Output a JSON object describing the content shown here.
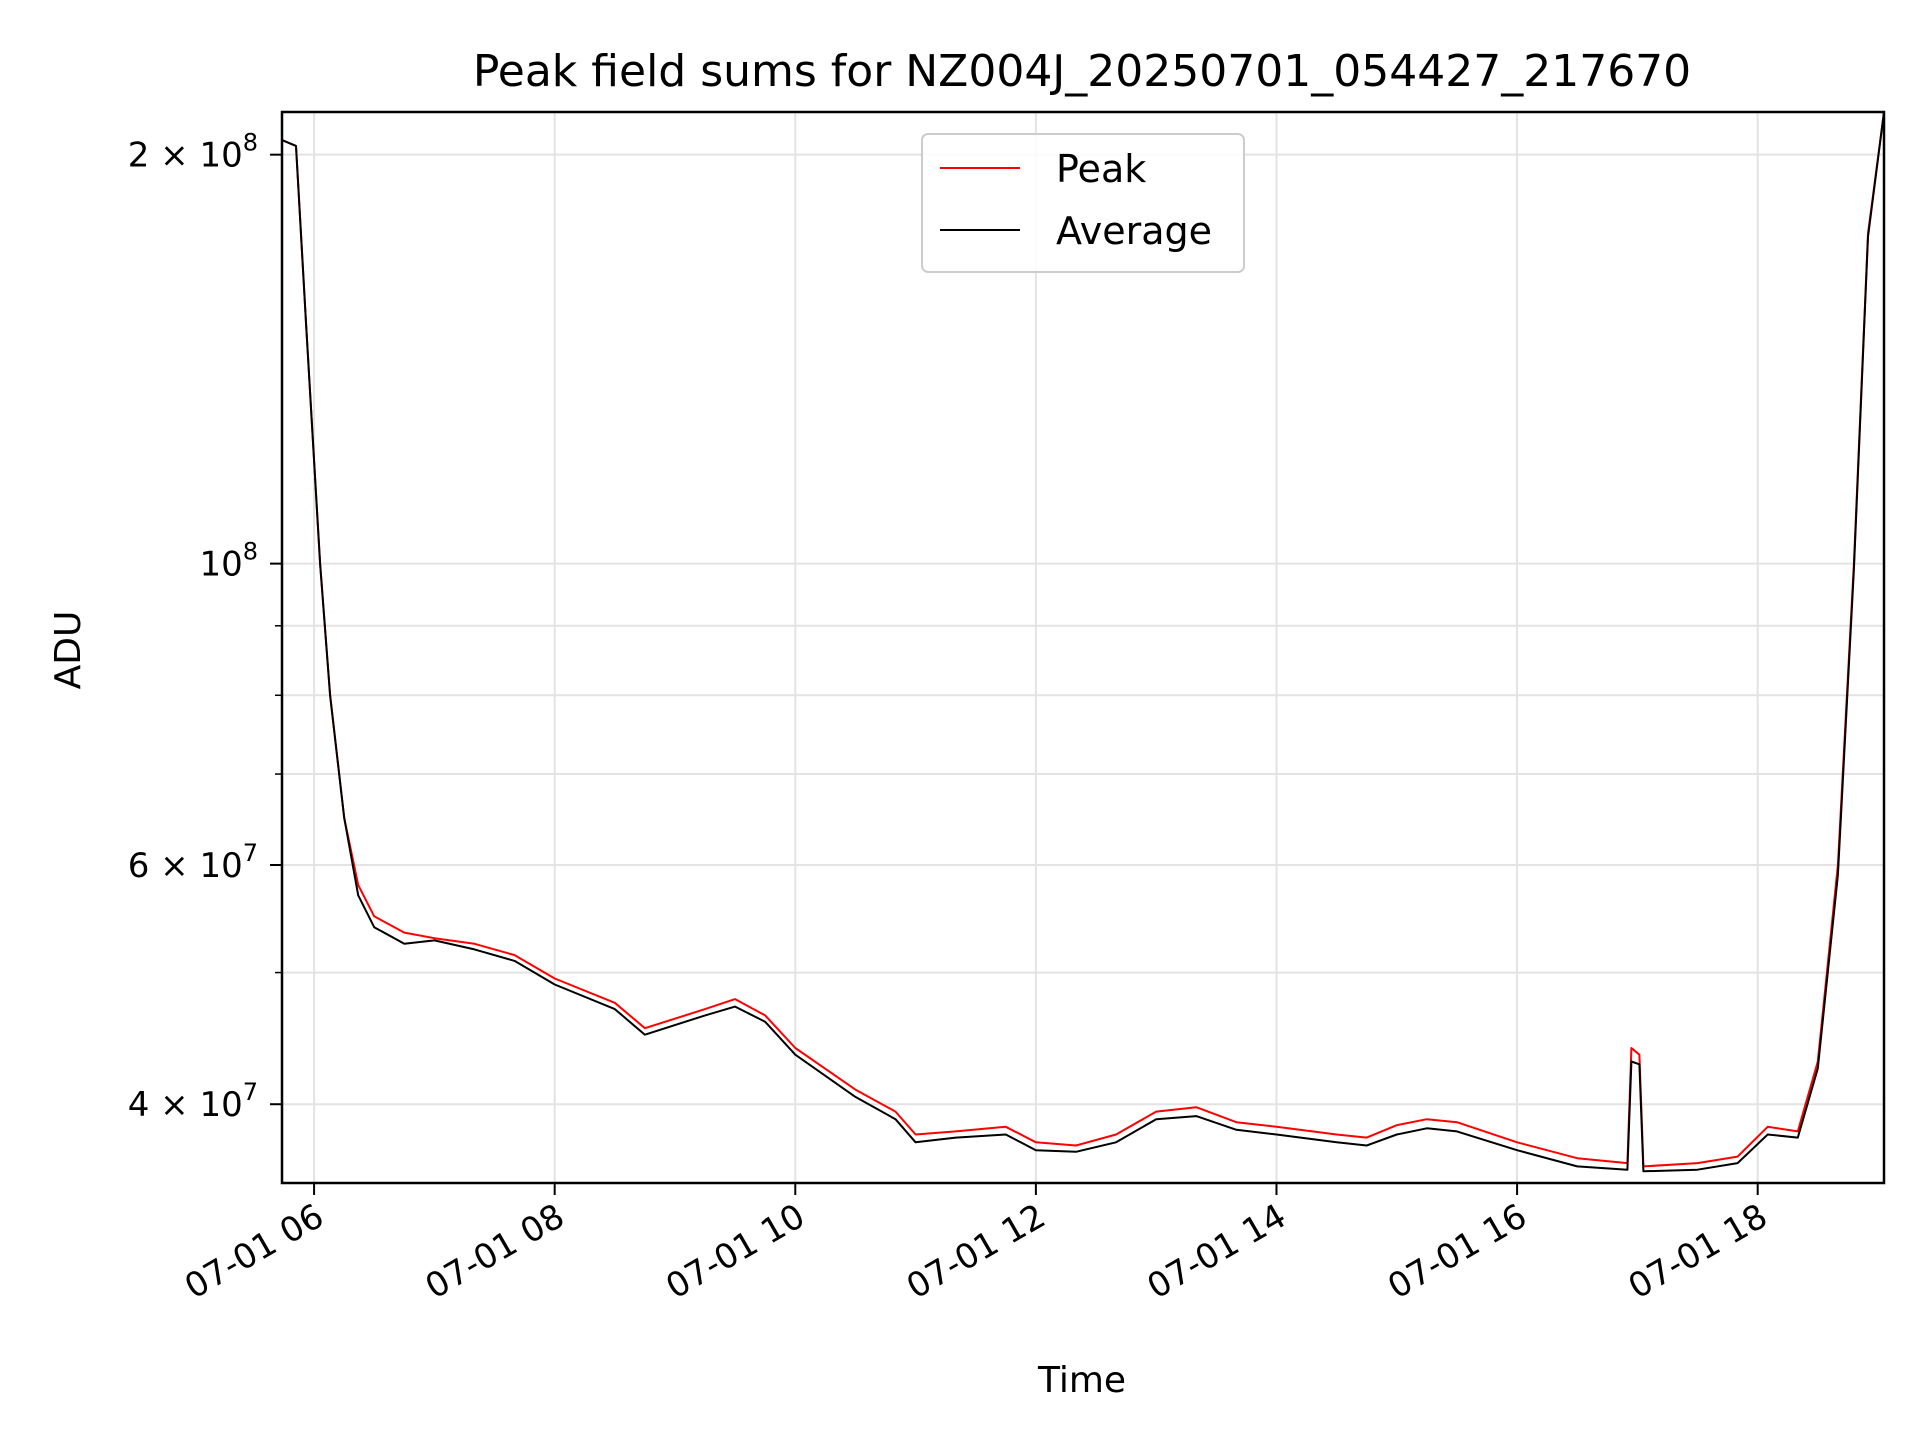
{
  "chart_data": {
    "type": "line",
    "title": "Peak field sums for NZ004J_20250701_054427_217670",
    "xlabel": "Time",
    "ylabel": "ADU",
    "y_scale": "log",
    "xlim": [
      "2025-07-01 05:44",
      "2025-07-01 19:03"
    ],
    "ylim": [
      35000000,
      215000000
    ],
    "grid": true,
    "legend_position": "upper center",
    "x_ticks": [
      {
        "value": "2025-07-01 06:00",
        "label": "07-01 06"
      },
      {
        "value": "2025-07-01 08:00",
        "label": "07-01 08"
      },
      {
        "value": "2025-07-01 10:00",
        "label": "07-01 10"
      },
      {
        "value": "2025-07-01 12:00",
        "label": "07-01 12"
      },
      {
        "value": "2025-07-01 14:00",
        "label": "07-01 14"
      },
      {
        "value": "2025-07-01 16:00",
        "label": "07-01 16"
      },
      {
        "value": "2025-07-01 18:00",
        "label": "07-01 18"
      }
    ],
    "y_ticks": [
      {
        "value": 200000000,
        "base": "2 × 10",
        "exp": "8"
      },
      {
        "value": 100000000,
        "base": "10",
        "exp": "8"
      },
      {
        "value": 60000000,
        "base": "6 × 10",
        "exp": "7"
      },
      {
        "value": 40000000,
        "base": "4 × 10",
        "exp": "7"
      }
    ],
    "y_minor_ticks": [
      90000000,
      80000000,
      70000000,
      50000000
    ],
    "series": [
      {
        "name": "Peak",
        "color": "#ff0000",
        "points": [
          [
            "2025-07-01 05:44",
            205000000
          ],
          [
            "2025-07-01 05:51",
            203000000
          ],
          [
            "2025-07-01 05:56",
            150000000
          ],
          [
            "2025-07-01 06:03",
            100000000
          ],
          [
            "2025-07-01 06:08",
            80000000
          ],
          [
            "2025-07-01 06:15",
            65000000
          ],
          [
            "2025-07-01 06:22",
            58000000
          ],
          [
            "2025-07-01 06:30",
            55000000
          ],
          [
            "2025-07-01 06:45",
            53500000
          ],
          [
            "2025-07-01 07:00",
            53000000
          ],
          [
            "2025-07-01 07:20",
            52500000
          ],
          [
            "2025-07-01 07:40",
            51500000
          ],
          [
            "2025-07-01 08:00",
            49500000
          ],
          [
            "2025-07-01 08:30",
            47500000
          ],
          [
            "2025-07-01 08:45",
            45500000
          ],
          [
            "2025-07-01 09:15",
            47000000
          ],
          [
            "2025-07-01 09:30",
            47800000
          ],
          [
            "2025-07-01 09:45",
            46500000
          ],
          [
            "2025-07-01 10:00",
            44000000
          ],
          [
            "2025-07-01 10:30",
            41000000
          ],
          [
            "2025-07-01 10:50",
            39500000
          ],
          [
            "2025-07-01 11:00",
            38000000
          ],
          [
            "2025-07-01 11:20",
            38200000
          ],
          [
            "2025-07-01 11:45",
            38500000
          ],
          [
            "2025-07-01 12:00",
            37500000
          ],
          [
            "2025-07-01 12:20",
            37300000
          ],
          [
            "2025-07-01 12:40",
            38000000
          ],
          [
            "2025-07-01 13:00",
            39500000
          ],
          [
            "2025-07-01 13:20",
            39800000
          ],
          [
            "2025-07-01 13:40",
            38800000
          ],
          [
            "2025-07-01 14:00",
            38500000
          ],
          [
            "2025-07-01 14:30",
            38000000
          ],
          [
            "2025-07-01 14:45",
            37800000
          ],
          [
            "2025-07-01 15:00",
            38600000
          ],
          [
            "2025-07-01 15:15",
            39000000
          ],
          [
            "2025-07-01 15:30",
            38800000
          ],
          [
            "2025-07-01 16:00",
            37500000
          ],
          [
            "2025-07-01 16:30",
            36500000
          ],
          [
            "2025-07-01 16:55",
            36200000
          ],
          [
            "2025-07-01 16:57",
            44000000
          ],
          [
            "2025-07-01 17:01",
            43500000
          ],
          [
            "2025-07-01 17:03",
            36000000
          ],
          [
            "2025-07-01 17:30",
            36200000
          ],
          [
            "2025-07-01 17:50",
            36600000
          ],
          [
            "2025-07-01 18:05",
            38500000
          ],
          [
            "2025-07-01 18:20",
            38200000
          ],
          [
            "2025-07-01 18:30",
            43000000
          ],
          [
            "2025-07-01 18:40",
            60000000
          ],
          [
            "2025-07-01 18:48",
            100000000
          ],
          [
            "2025-07-01 18:55",
            175000000
          ],
          [
            "2025-07-01 19:03",
            215000000
          ]
        ]
      },
      {
        "name": "Average",
        "color": "#000000",
        "points": [
          [
            "2025-07-01 05:44",
            205000000
          ],
          [
            "2025-07-01 05:51",
            203000000
          ],
          [
            "2025-07-01 05:56",
            150000000
          ],
          [
            "2025-07-01 06:03",
            100000000
          ],
          [
            "2025-07-01 06:08",
            80000000
          ],
          [
            "2025-07-01 06:15",
            65000000
          ],
          [
            "2025-07-01 06:22",
            57000000
          ],
          [
            "2025-07-01 06:30",
            54000000
          ],
          [
            "2025-07-01 06:45",
            52500000
          ],
          [
            "2025-07-01 07:00",
            52800000
          ],
          [
            "2025-07-01 07:20",
            52000000
          ],
          [
            "2025-07-01 07:40",
            51000000
          ],
          [
            "2025-07-01 08:00",
            49000000
          ],
          [
            "2025-07-01 08:30",
            47000000
          ],
          [
            "2025-07-01 08:45",
            45000000
          ],
          [
            "2025-07-01 09:15",
            46500000
          ],
          [
            "2025-07-01 09:30",
            47200000
          ],
          [
            "2025-07-01 09:45",
            46000000
          ],
          [
            "2025-07-01 10:00",
            43500000
          ],
          [
            "2025-07-01 10:30",
            40500000
          ],
          [
            "2025-07-01 10:50",
            39000000
          ],
          [
            "2025-07-01 11:00",
            37500000
          ],
          [
            "2025-07-01 11:20",
            37800000
          ],
          [
            "2025-07-01 11:45",
            38000000
          ],
          [
            "2025-07-01 12:00",
            37000000
          ],
          [
            "2025-07-01 12:20",
            36900000
          ],
          [
            "2025-07-01 12:40",
            37500000
          ],
          [
            "2025-07-01 13:00",
            39000000
          ],
          [
            "2025-07-01 13:20",
            39200000
          ],
          [
            "2025-07-01 13:40",
            38300000
          ],
          [
            "2025-07-01 14:00",
            38000000
          ],
          [
            "2025-07-01 14:30",
            37500000
          ],
          [
            "2025-07-01 14:45",
            37300000
          ],
          [
            "2025-07-01 15:00",
            38000000
          ],
          [
            "2025-07-01 15:15",
            38400000
          ],
          [
            "2025-07-01 15:30",
            38200000
          ],
          [
            "2025-07-01 16:00",
            37000000
          ],
          [
            "2025-07-01 16:30",
            36000000
          ],
          [
            "2025-07-01 16:55",
            35800000
          ],
          [
            "2025-07-01 16:57",
            43000000
          ],
          [
            "2025-07-01 17:01",
            42800000
          ],
          [
            "2025-07-01 17:03",
            35700000
          ],
          [
            "2025-07-01 17:30",
            35800000
          ],
          [
            "2025-07-01 17:50",
            36200000
          ],
          [
            "2025-07-01 18:05",
            38000000
          ],
          [
            "2025-07-01 18:20",
            37800000
          ],
          [
            "2025-07-01 18:30",
            42500000
          ],
          [
            "2025-07-01 18:40",
            59000000
          ],
          [
            "2025-07-01 18:48",
            99000000
          ],
          [
            "2025-07-01 18:55",
            174000000
          ],
          [
            "2025-07-01 19:03",
            215000000
          ]
        ]
      }
    ]
  }
}
